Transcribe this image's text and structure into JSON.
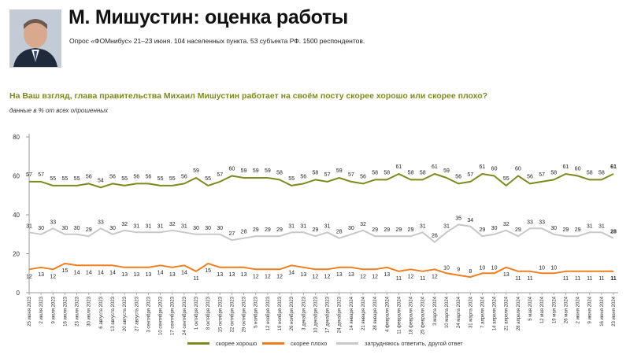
{
  "header": {
    "title": "М. Мишустин: оценка работы",
    "subtitle": "Опрос «ФОМнибус» 21–23 июня. 104 населенных пункта. 53 субъекта РФ. 1500 респондентов."
  },
  "question": "На Ваш взгляд, глава правительства Михаил Мишустин работает на своём посту скорее хорошо или скорее плохо?",
  "note": "данные в % от всех опрошенных",
  "colors": {
    "good": "#7d8a1d",
    "bad": "#f07e1e",
    "unsure": "#c8c8c8",
    "axis": "#999999",
    "grid": "#e6e6e6"
  },
  "chart_data": {
    "type": "line",
    "ylim": [
      0,
      80
    ],
    "yticks": [
      0,
      20,
      40,
      60,
      80
    ],
    "x": [
      "25 июня 2023",
      "2 июля 2023",
      "9 июля 2023",
      "16 июля 2023",
      "23 июля 2023",
      "30 июля 2023",
      "6 августа 2023",
      "13 августа 2023",
      "20 августа 2023",
      "27 августа 2023",
      "3 сентября 2023",
      "10 сентября 2023",
      "17 сентября 2023",
      "24 сентября 2023",
      "1 октября 2023",
      "8 октября 2023",
      "15 октября 2023",
      "22 октября 2023",
      "29 октября 2023",
      "5 ноября 2023",
      "12 ноября 2023",
      "19 ноября 2023",
      "26 ноября 2023",
      "3 декабря 2023",
      "10 декабря 2023",
      "17 декабря 2023",
      "24 декабря 2023",
      "14 января 2024",
      "21 января 2024",
      "28 января 2024",
      "4 февраля 2024",
      "11 февраля 2024",
      "18 февраля 2024",
      "25 февраля 2024",
      "3 марта 2024",
      "10 марта 2024",
      "24 марта 2024",
      "31 марта 2024",
      "7 апреля 2024",
      "14 апреля 2024",
      "21 апреля 2024",
      "28 апреля 2024",
      "5 мая 2024",
      "12 мая 2024",
      "19 мая 2024",
      "26 мая 2024",
      "2 июня 2024",
      "9 июня 2024",
      "16 июня 2024",
      "23 июня 2024"
    ],
    "series": [
      {
        "name": "скорее хорошо",
        "key": "good",
        "values": [
          57,
          57,
          55,
          55,
          55,
          56,
          54,
          56,
          55,
          56,
          56,
          55,
          55,
          56,
          59,
          55,
          57,
          60,
          59,
          59,
          59,
          58,
          55,
          56,
          58,
          57,
          59,
          57,
          56,
          58,
          58,
          61,
          58,
          58,
          61,
          59,
          56,
          57,
          61,
          60,
          55,
          60,
          56,
          57,
          58,
          61,
          60,
          58,
          58,
          61
        ]
      },
      {
        "name": "скорее плохо",
        "key": "bad",
        "values": [
          12,
          13,
          12,
          15,
          14,
          14,
          14,
          14,
          13,
          13,
          13,
          14,
          13,
          14,
          11,
          15,
          13,
          13,
          13,
          12,
          12,
          12,
          14,
          13,
          12,
          12,
          13,
          13,
          12,
          12,
          13,
          11,
          12,
          11,
          12,
          10,
          9,
          8,
          10,
          10,
          13,
          11,
          11,
          10,
          10,
          11,
          11,
          11,
          11,
          11
        ]
      },
      {
        "name": "затрудняюсь ответить, другой ответ",
        "key": "unsure",
        "values": [
          31,
          30,
          33,
          30,
          30,
          29,
          33,
          30,
          32,
          31,
          31,
          31,
          32,
          31,
          30,
          30,
          30,
          27,
          28,
          29,
          29,
          29,
          31,
          31,
          29,
          31,
          28,
          30,
          32,
          29,
          29,
          29,
          29,
          31,
          26,
          31,
          35,
          34,
          29,
          30,
          32,
          29,
          33,
          33,
          30,
          29,
          29,
          31,
          31,
          28
        ]
      }
    ],
    "legend_position": "bottom"
  }
}
